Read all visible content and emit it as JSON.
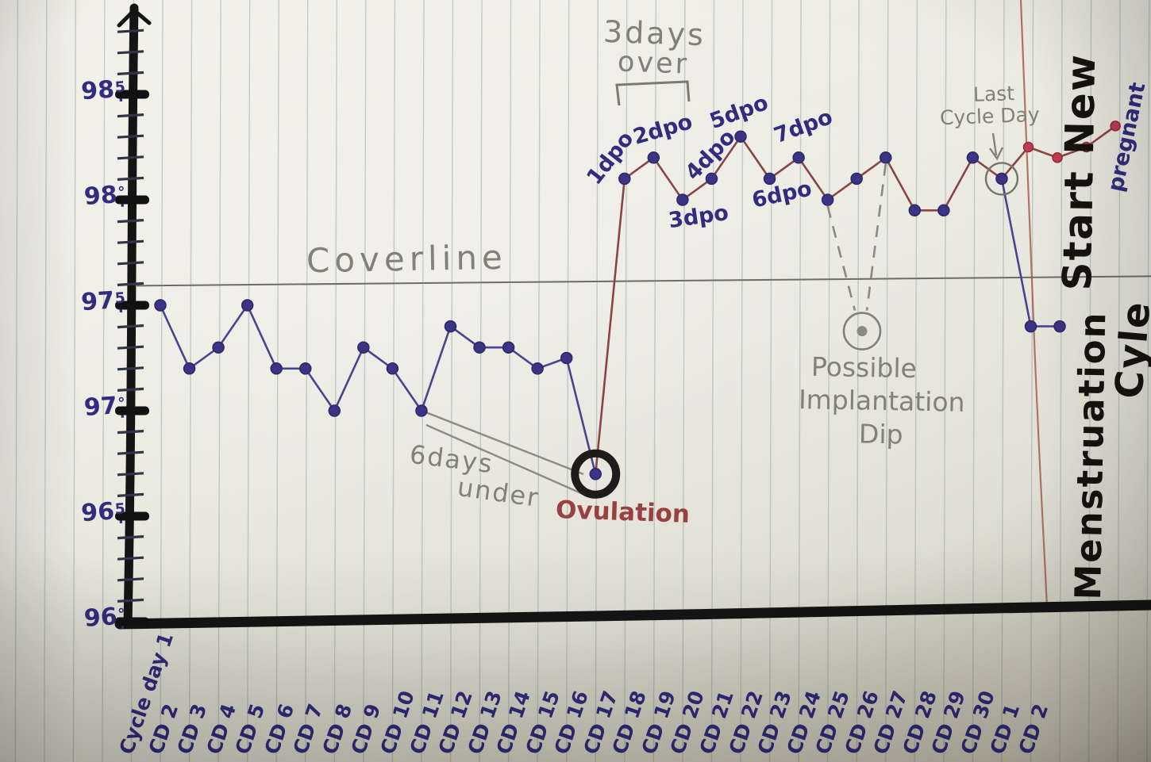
{
  "chart_data": {
    "type": "line",
    "description": "Hand-drawn basal body temperature fertility chart on ruled paper",
    "y_axis": {
      "tick_values": [
        98.5,
        98.0,
        97.5,
        97.0,
        96.5,
        96.0
      ],
      "tick_labels": [
        {
          "main": "98",
          "sup": "5"
        },
        {
          "main": "98",
          "sup": "°"
        },
        {
          "main": "97",
          "sup": "5"
        },
        {
          "main": "97",
          "sup": "°"
        },
        {
          "main": "96",
          "sup": "5"
        },
        {
          "main": "96",
          "sup": "°"
        }
      ],
      "minor_step": 0.1,
      "range": [
        96.0,
        98.9
      ]
    },
    "categories": [
      "Cycle day 1",
      "CD 2",
      "CD 3",
      "CD 4",
      "CD 5",
      "CD 6",
      "CD 7",
      "CD 8",
      "CD 9",
      "CD 10",
      "CD 11",
      "CD 12",
      "CD 13",
      "CD 14",
      "CD 15",
      "CD 16",
      "CD 17",
      "CD 18",
      "CD 19",
      "CD 20",
      "CD 21",
      "CD 22",
      "CD 23",
      "CD 24",
      "CD 25",
      "CD 26",
      "CD 27",
      "CD 28",
      "CD 29",
      "CD 30",
      "CD 1",
      "CD 2"
    ],
    "series": [
      {
        "name": "pre-ovulation-temps-CD1-CD16",
        "start_index": 0,
        "connects_from_index": null,
        "dot_color": "#3b3384",
        "line_color": "#4a4391",
        "values": [
          97.5,
          97.2,
          97.3,
          97.5,
          97.2,
          97.2,
          97.0,
          97.3,
          97.2,
          97.0,
          97.4,
          97.3,
          97.3,
          97.2,
          97.25,
          96.7
        ]
      },
      {
        "name": "post-ovulation-temps-CD17-CD30",
        "start_index": 16,
        "connects_from_index": 15,
        "dot_color": "#3b3384",
        "line_color": "#8a4444",
        "values": [
          98.1,
          98.2,
          98.0,
          98.1,
          98.3,
          98.1,
          98.2,
          98.0,
          98.1,
          98.2,
          97.95,
          97.95,
          98.2,
          98.1
        ]
      },
      {
        "name": "pregnant-temps-stay-high",
        "start_index": 30,
        "connects_from_index": 29,
        "dot_color": "#c13a52",
        "line_color": "#8a4444",
        "values": [
          98.25,
          98.2,
          98.25,
          98.35
        ]
      },
      {
        "name": "new-cycle-temp-drop",
        "start_index": 30,
        "connects_from_index": 29,
        "dot_color": "#3b3384",
        "line_color": "#4a4391",
        "values": [
          97.4,
          97.4
        ]
      }
    ],
    "coverline": {
      "label": "Coverline",
      "temp": 97.6
    },
    "ovulation": {
      "label": "Ovulation",
      "category_index": 15,
      "temp": 96.7
    },
    "implantation_dip": {
      "temp": 97.4,
      "near_category": "CD 25",
      "dashed_from_indices": [
        23,
        25
      ]
    },
    "last_cycle_day": {
      "circled_category_index": 29
    }
  },
  "annotations": {
    "days_over": {
      "line1": "3days",
      "line2": "over"
    },
    "dpo_labels": [
      "1dpo",
      "2dpo",
      "3dpo",
      "4dpo",
      "5dpo",
      "6dpo",
      "7dpo"
    ],
    "six_days_under": {
      "line1": "6days",
      "line2": "under"
    },
    "last_cycle_day": {
      "line1": "Last",
      "line2": "Cycle Day"
    },
    "implantation_dip": {
      "line1": "Possible",
      "line2": "Implantation",
      "line3": "Dip"
    },
    "side_text": {
      "line1": "Start New",
      "line2": "Menstruation",
      "line3": "Cyle"
    },
    "pregnant_label": "pregnant"
  },
  "palette": {
    "ink_blue": "#322c80",
    "dot_blue": "#3b3384",
    "line_blue": "#4a4391",
    "line_maroon": "#8a4444",
    "dot_red": "#c13a52",
    "pencil_gray": "#828177",
    "marker_black": "#16130e",
    "paper": "#eaeae0",
    "margin_rule_red": "#a25648"
  }
}
